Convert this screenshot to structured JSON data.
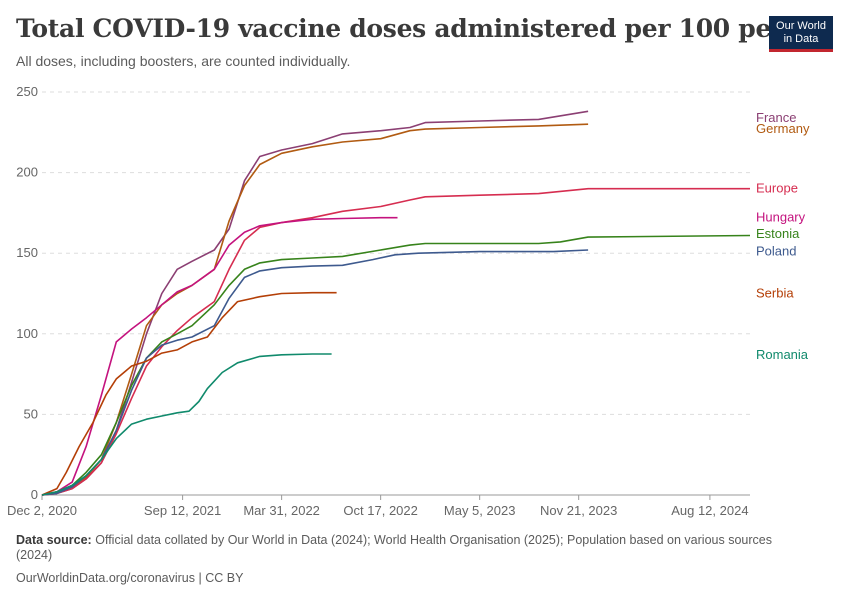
{
  "header": {
    "title": "Total COVID-19 vaccine doses administered per 100 people",
    "subtitle": "All doses, including boosters, are counted individually."
  },
  "logo": {
    "line1": "Our World",
    "line2": "in Data"
  },
  "footer": {
    "source_label": "Data source:",
    "source_text": "Official data collated by Our World in Data (2024); World Health Organisation (2025); Population based on various sources (2024)",
    "credit": "OurWorldinData.org/coronavirus | CC BY"
  },
  "chart_data": {
    "type": "line",
    "ylim": [
      0,
      250
    ],
    "yticks": [
      0,
      50,
      100,
      150,
      200,
      250
    ],
    "x_domain": [
      "2020-12-02",
      "2024-11-01"
    ],
    "xticks": [
      "2020-12-02",
      "2021-09-12",
      "2022-03-31",
      "2022-10-17",
      "2023-05-05",
      "2023-11-21",
      "2024-08-12"
    ],
    "xtick_labels": [
      "Dec 2, 2020",
      "Sep 12, 2021",
      "Mar 31, 2022",
      "Oct 17, 2022",
      "May 5, 2023",
      "Nov 21, 2023",
      "Aug 12, 2024"
    ],
    "grid": true,
    "legend": "right (labels at line ends)",
    "series": [
      {
        "name": "France",
        "color": "#8b3f73",
        "label_y": 234,
        "points": [
          [
            "2020-12-02",
            0
          ],
          [
            "2021-01-01",
            1
          ],
          [
            "2021-02-01",
            4
          ],
          [
            "2021-03-01",
            10
          ],
          [
            "2021-04-01",
            20
          ],
          [
            "2021-05-01",
            40
          ],
          [
            "2021-06-01",
            70
          ],
          [
            "2021-07-01",
            100
          ],
          [
            "2021-08-01",
            125
          ],
          [
            "2021-09-01",
            140
          ],
          [
            "2021-10-01",
            145
          ],
          [
            "2021-11-15",
            152
          ],
          [
            "2021-12-15",
            165
          ],
          [
            "2022-01-15",
            195
          ],
          [
            "2022-02-15",
            210
          ],
          [
            "2022-03-31",
            214
          ],
          [
            "2022-06-01",
            218
          ],
          [
            "2022-08-01",
            224
          ],
          [
            "2022-10-17",
            226
          ],
          [
            "2022-12-15",
            228
          ],
          [
            "2023-01-15",
            231
          ],
          [
            "2023-05-05",
            232
          ],
          [
            "2023-09-01",
            233
          ],
          [
            "2023-12-10",
            238
          ]
        ]
      },
      {
        "name": "Germany",
        "color": "#b15b12",
        "label_y": 227,
        "points": [
          [
            "2020-12-02",
            0
          ],
          [
            "2021-01-01",
            1
          ],
          [
            "2021-02-01",
            5
          ],
          [
            "2021-03-01",
            11
          ],
          [
            "2021-04-01",
            22
          ],
          [
            "2021-05-01",
            45
          ],
          [
            "2021-06-01",
            75
          ],
          [
            "2021-07-01",
            105
          ],
          [
            "2021-08-01",
            118
          ],
          [
            "2021-09-01",
            125
          ],
          [
            "2021-10-01",
            130
          ],
          [
            "2021-11-15",
            140
          ],
          [
            "2021-12-15",
            170
          ],
          [
            "2022-01-15",
            192
          ],
          [
            "2022-02-15",
            205
          ],
          [
            "2022-03-31",
            212
          ],
          [
            "2022-06-01",
            216
          ],
          [
            "2022-08-01",
            219
          ],
          [
            "2022-10-17",
            221
          ],
          [
            "2022-12-15",
            226
          ],
          [
            "2023-01-15",
            227
          ],
          [
            "2023-05-05",
            228
          ],
          [
            "2023-09-01",
            229
          ],
          [
            "2023-12-10",
            230
          ]
        ]
      },
      {
        "name": "Europe",
        "color": "#d62d50",
        "label_y": 190,
        "points": [
          [
            "2020-12-02",
            0
          ],
          [
            "2021-01-01",
            1
          ],
          [
            "2021-02-01",
            4
          ],
          [
            "2021-03-01",
            10
          ],
          [
            "2021-04-01",
            20
          ],
          [
            "2021-05-01",
            38
          ],
          [
            "2021-06-01",
            60
          ],
          [
            "2021-07-01",
            80
          ],
          [
            "2021-08-01",
            92
          ],
          [
            "2021-09-01",
            102
          ],
          [
            "2021-10-01",
            110
          ],
          [
            "2021-11-15",
            120
          ],
          [
            "2021-12-15",
            140
          ],
          [
            "2022-01-15",
            158
          ],
          [
            "2022-02-15",
            166
          ],
          [
            "2022-03-31",
            169
          ],
          [
            "2022-06-01",
            172
          ],
          [
            "2022-08-01",
            176
          ],
          [
            "2022-10-17",
            179
          ],
          [
            "2022-12-15",
            183
          ],
          [
            "2023-01-15",
            185
          ],
          [
            "2023-05-05",
            186
          ],
          [
            "2023-09-01",
            187
          ],
          [
            "2023-12-10",
            190
          ],
          [
            "2024-11-01",
            190
          ]
        ]
      },
      {
        "name": "Hungary",
        "color": "#c4137e",
        "label_y": 172,
        "points": [
          [
            "2020-12-02",
            0
          ],
          [
            "2021-01-01",
            2
          ],
          [
            "2021-02-01",
            8
          ],
          [
            "2021-03-01",
            30
          ],
          [
            "2021-04-01",
            62
          ],
          [
            "2021-05-01",
            95
          ],
          [
            "2021-06-01",
            103
          ],
          [
            "2021-07-01",
            110
          ],
          [
            "2021-08-01",
            118
          ],
          [
            "2021-09-01",
            126
          ],
          [
            "2021-10-01",
            130
          ],
          [
            "2021-11-15",
            140
          ],
          [
            "2021-12-15",
            155
          ],
          [
            "2022-01-15",
            163
          ],
          [
            "2022-02-15",
            167
          ],
          [
            "2022-03-31",
            169
          ],
          [
            "2022-06-01",
            171
          ],
          [
            "2022-08-01",
            171.5
          ],
          [
            "2022-10-17",
            172
          ],
          [
            "2022-11-20",
            172
          ]
        ]
      },
      {
        "name": "Estonia",
        "color": "#37831b",
        "label_y": 162,
        "points": [
          [
            "2020-12-02",
            0
          ],
          [
            "2021-01-01",
            2
          ],
          [
            "2021-02-01",
            6
          ],
          [
            "2021-03-01",
            14
          ],
          [
            "2021-04-01",
            25
          ],
          [
            "2021-05-01",
            45
          ],
          [
            "2021-06-01",
            68
          ],
          [
            "2021-07-01",
            85
          ],
          [
            "2021-08-01",
            95
          ],
          [
            "2021-09-01",
            100
          ],
          [
            "2021-10-01",
            105
          ],
          [
            "2021-11-15",
            118
          ],
          [
            "2021-12-15",
            130
          ],
          [
            "2022-01-15",
            140
          ],
          [
            "2022-02-15",
            144
          ],
          [
            "2022-03-31",
            146
          ],
          [
            "2022-06-01",
            147
          ],
          [
            "2022-08-01",
            148
          ],
          [
            "2022-10-17",
            152
          ],
          [
            "2022-12-15",
            155
          ],
          [
            "2023-01-15",
            156
          ],
          [
            "2023-05-05",
            156
          ],
          [
            "2023-09-01",
            156
          ],
          [
            "2023-10-15",
            157
          ],
          [
            "2023-12-10",
            160
          ],
          [
            "2024-11-01",
            161
          ]
        ]
      },
      {
        "name": "Poland",
        "color": "#3e5a8e",
        "label_y": 151,
        "points": [
          [
            "2020-12-02",
            0
          ],
          [
            "2021-01-01",
            1
          ],
          [
            "2021-02-01",
            5
          ],
          [
            "2021-03-01",
            12
          ],
          [
            "2021-04-01",
            22
          ],
          [
            "2021-05-01",
            40
          ],
          [
            "2021-06-01",
            65
          ],
          [
            "2021-07-01",
            85
          ],
          [
            "2021-08-01",
            93
          ],
          [
            "2021-09-01",
            96
          ],
          [
            "2021-10-01",
            98
          ],
          [
            "2021-11-15",
            105
          ],
          [
            "2021-12-15",
            122
          ],
          [
            "2022-01-15",
            135
          ],
          [
            "2022-02-15",
            139
          ],
          [
            "2022-03-31",
            141
          ],
          [
            "2022-06-01",
            142
          ],
          [
            "2022-08-01",
            142.5
          ],
          [
            "2022-10-01",
            146
          ],
          [
            "2022-11-15",
            149
          ],
          [
            "2023-01-01",
            150
          ],
          [
            "2023-05-05",
            151
          ],
          [
            "2023-10-01",
            151
          ],
          [
            "2023-12-10",
            152
          ]
        ]
      },
      {
        "name": "Serbia",
        "color": "#b43f07",
        "label_y": 125,
        "points": [
          [
            "2020-12-02",
            0
          ],
          [
            "2021-01-01",
            4
          ],
          [
            "2021-01-20",
            14
          ],
          [
            "2021-02-15",
            30
          ],
          [
            "2021-03-15",
            45
          ],
          [
            "2021-04-10",
            62
          ],
          [
            "2021-05-01",
            72
          ],
          [
            "2021-06-01",
            80
          ],
          [
            "2021-07-01",
            83
          ],
          [
            "2021-08-01",
            88
          ],
          [
            "2021-09-01",
            90
          ],
          [
            "2021-10-01",
            95
          ],
          [
            "2021-11-01",
            98
          ],
          [
            "2021-12-01",
            110
          ],
          [
            "2022-01-01",
            120
          ],
          [
            "2022-02-15",
            123
          ],
          [
            "2022-03-31",
            125
          ],
          [
            "2022-06-01",
            125.5
          ],
          [
            "2022-07-20",
            125.5
          ]
        ]
      },
      {
        "name": "Romania",
        "color": "#108a6c",
        "label_y": 87,
        "points": [
          [
            "2020-12-02",
            0
          ],
          [
            "2021-01-01",
            2
          ],
          [
            "2021-02-01",
            6
          ],
          [
            "2021-03-01",
            12
          ],
          [
            "2021-04-01",
            22
          ],
          [
            "2021-05-01",
            35
          ],
          [
            "2021-06-01",
            44
          ],
          [
            "2021-07-01",
            47
          ],
          [
            "2021-08-01",
            49
          ],
          [
            "2021-09-01",
            51
          ],
          [
            "2021-09-25",
            52
          ],
          [
            "2021-10-15",
            58
          ],
          [
            "2021-11-01",
            66
          ],
          [
            "2021-12-01",
            76
          ],
          [
            "2022-01-01",
            82
          ],
          [
            "2022-02-15",
            86
          ],
          [
            "2022-03-31",
            87
          ],
          [
            "2022-06-01",
            87.5
          ],
          [
            "2022-07-10",
            87.5
          ]
        ]
      }
    ]
  }
}
